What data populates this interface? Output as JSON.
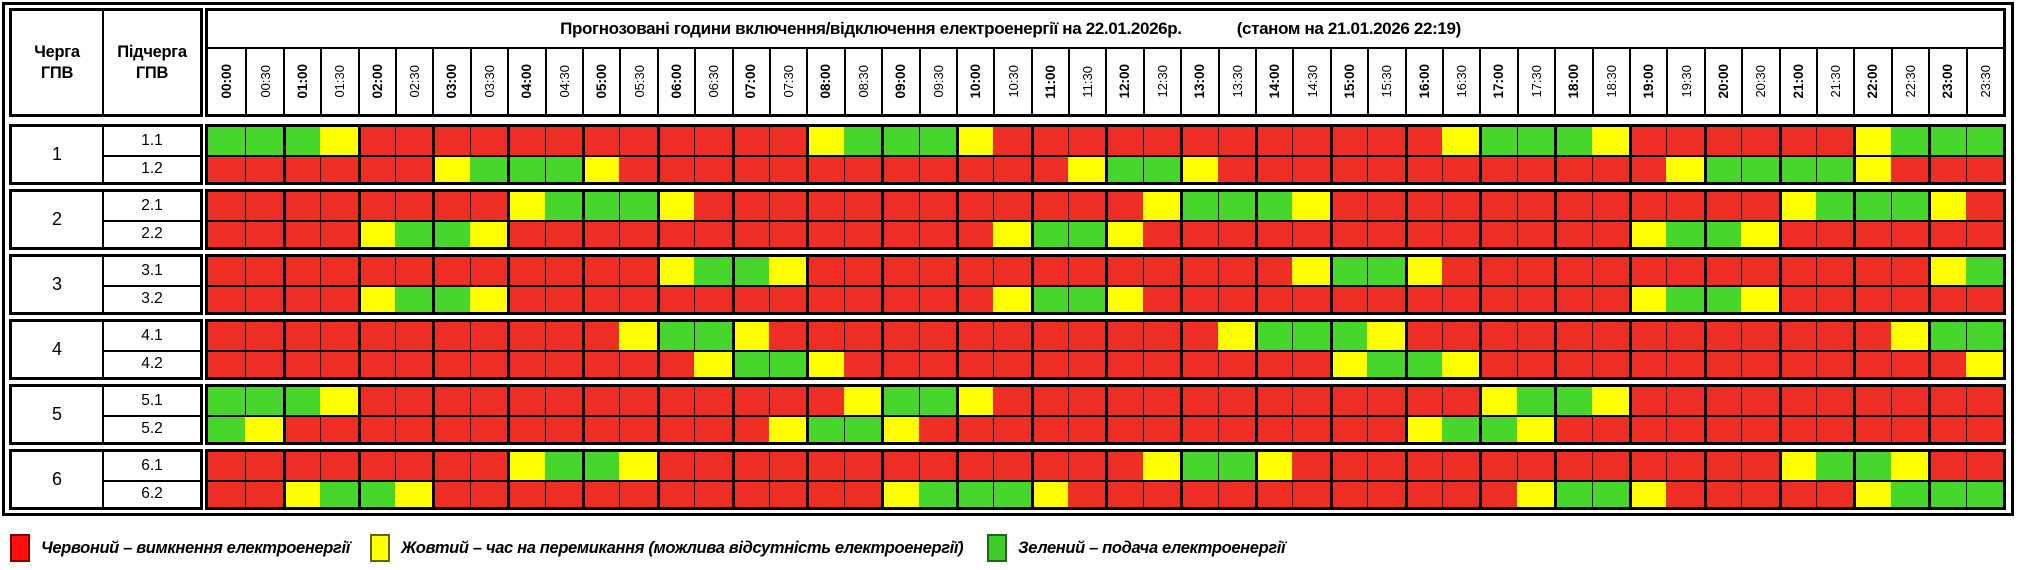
{
  "header": {
    "queue_col": "Черга\nГПВ",
    "subqueue_col": "Підчерга\nГПВ",
    "title": "Прогнозовані години включення/відключення електроенергії на 22.01.2026р.",
    "status_note": "(станом на 21.01.2026 22:19)"
  },
  "time_slots": [
    "00:00",
    "00:30",
    "01:00",
    "01:30",
    "02:00",
    "02:30",
    "03:00",
    "03:30",
    "04:00",
    "04:30",
    "05:00",
    "05:30",
    "06:00",
    "06:30",
    "07:00",
    "07:30",
    "08:00",
    "08:30",
    "09:00",
    "09:30",
    "10:00",
    "10:30",
    "11:00",
    "11:30",
    "12:00",
    "12:30",
    "13:00",
    "13:30",
    "14:00",
    "14:30",
    "15:00",
    "15:30",
    "16:00",
    "16:30",
    "17:00",
    "17:30",
    "18:00",
    "18:30",
    "19:00",
    "19:30",
    "20:00",
    "20:30",
    "21:00",
    "21:30",
    "22:00",
    "22:30",
    "23:00",
    "23:30"
  ],
  "colors": {
    "R": "#ee2e24",
    "Y": "#ffff00",
    "G": "#46d62c"
  },
  "groups": [
    {
      "queue": "1",
      "rows": [
        {
          "label": "1.1",
          "cells": "GGGYRRRRRRRRRRRRYGGGYRRRRRRRRRRRRYGGGYRRRRRRYGGG"
        },
        {
          "label": "1.2",
          "cells": "RRRRRRYGGGYRRRRRRRRRRRRYGGYRRRRRRRRRRRRYGGGGYRRR"
        }
      ]
    },
    {
      "queue": "2",
      "rows": [
        {
          "label": "2.1",
          "cells": "RRRRRRRRYGGGYRRRRRRRRRRRRYGGGYRRRRRRRRRRRRYGGGYR"
        },
        {
          "label": "2.2",
          "cells": "RRRRYGGYRRRRRRRRRRRRRYGGYRRRRRRRRRRRRRYGGYRRRRRR"
        }
      ]
    },
    {
      "queue": "3",
      "rows": [
        {
          "label": "3.1",
          "cells": "RRRRRRRRRRRRYGGYRRRRRRRRRRRRRYGGYRRRRRRRRRRRRRYG"
        },
        {
          "label": "3.2",
          "cells": "RRRRYGGYRRRRRRRRRRRRRYGGYRRRRRRRRRRRRRYGGYRRRRRR"
        }
      ]
    },
    {
      "queue": "4",
      "rows": [
        {
          "label": "4.1",
          "cells": "RRRRRRRRRRRYGGYRRRRRRRRRRRRYGGGYRRRRRRRRRRRRRYGG"
        },
        {
          "label": "4.2",
          "cells": "RRRRRRRRRRRRRYGGYRRRRRRRRRRRRRYGGYRRRRRRRRRRRRRY"
        }
      ]
    },
    {
      "queue": "5",
      "rows": [
        {
          "label": "5.1",
          "cells": "GGGYRRRRRRRRRRRRRYGGYRRRRRRRRRRRRRYGGYRRRRRRRRRR"
        },
        {
          "label": "5.2",
          "cells": "GYRRRRRRRRRRRRRYGGYRRRRRRRRRRRRRYGGYRRRRRRRRRRRR"
        }
      ]
    },
    {
      "queue": "6",
      "rows": [
        {
          "label": "6.1",
          "cells": "RRRRRRRRYGGYRRRRRRRRRRRRRYGGYRRRRRRRRRRRRRYGGYRR"
        },
        {
          "label": "6.2",
          "cells": "RRYGGYRRRRRRRRRRRRYGGGYRRRRRRRRRRRRYGGYRRRRRYGGG"
        }
      ]
    }
  ],
  "legend": [
    {
      "key": "R",
      "swatch": "#fb0f0c",
      "swatch_border": "#7f0000",
      "label": "Червоний – вимкнення електроенергії"
    },
    {
      "key": "Y",
      "swatch": "#ffff00",
      "swatch_border": "#666600",
      "label": "Жовтий – час на перемикання (можлива відсутність електроенергії)"
    },
    {
      "key": "G",
      "swatch": "#3ecc2a",
      "swatch_border": "#1f661a",
      "label": "Зелений – подача електроенергії"
    }
  ]
}
